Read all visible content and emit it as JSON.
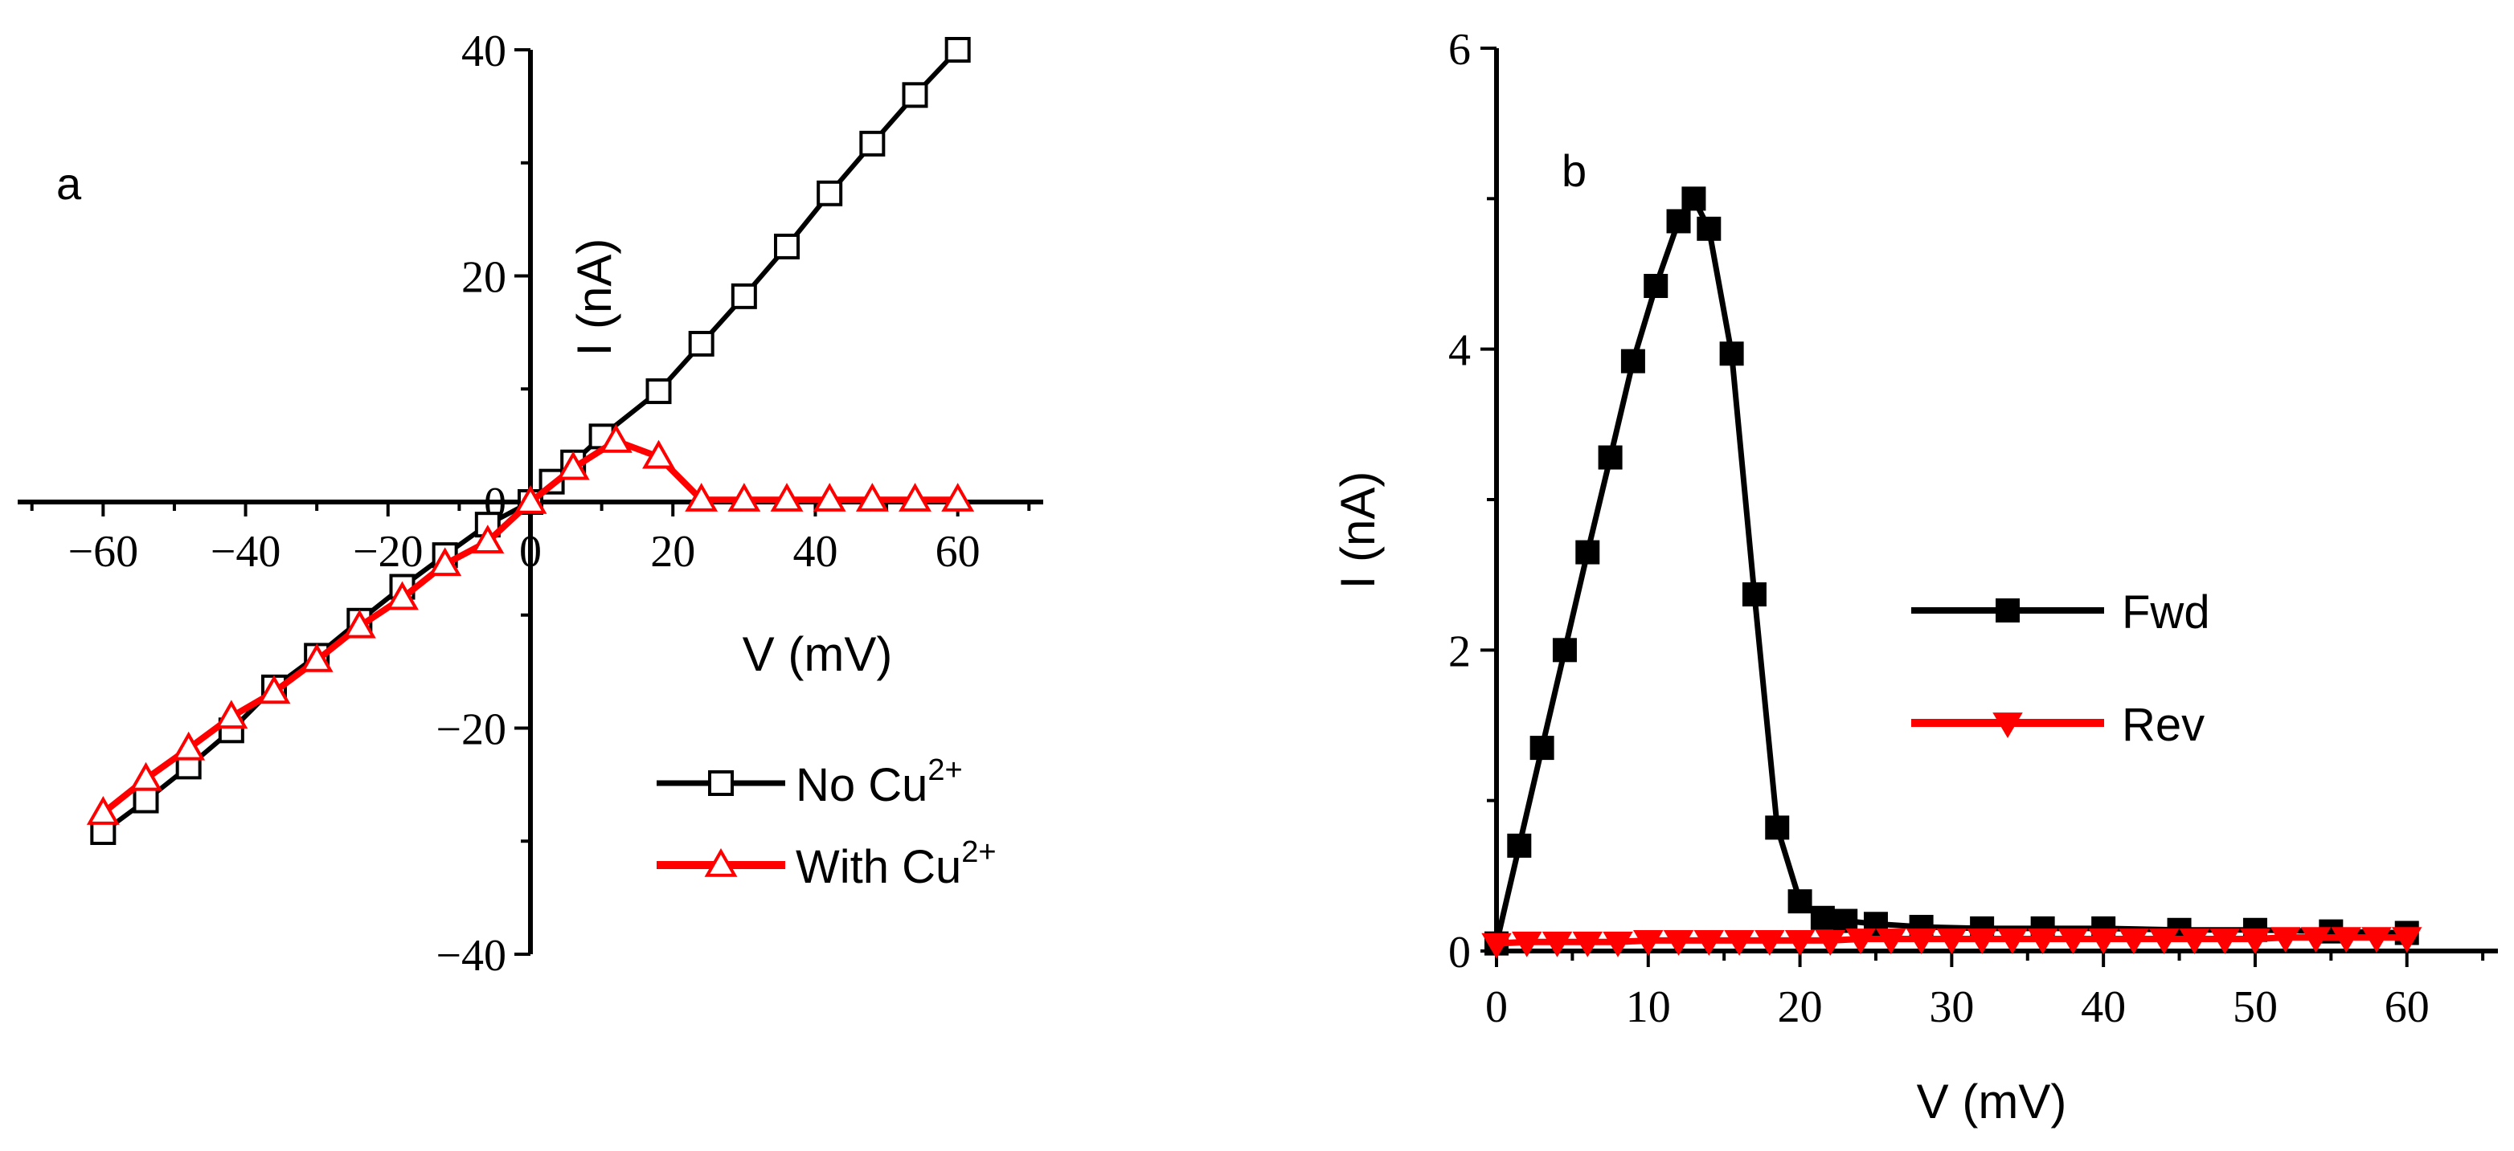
{
  "colors": {
    "black": "#000000",
    "red": "#ff0000",
    "white": "#ffffff"
  },
  "chart_data": [
    {
      "type": "line",
      "panel_label": "a",
      "xlabel": "V (mV)",
      "ylabel": "I (nA)",
      "xlim": [
        -72,
        72
      ],
      "ylim": [
        -40,
        40
      ],
      "x_ticks": [
        -60,
        -40,
        -20,
        0,
        20,
        40,
        60
      ],
      "y_ticks": [
        -40,
        -20,
        0,
        20,
        40
      ],
      "x_tick_labels": [
        "−60",
        "−40",
        "−20",
        "0",
        "20",
        "40",
        "60"
      ],
      "y_tick_labels": [
        "−40",
        "−20",
        "0",
        "20",
        "40"
      ],
      "axes_style": "crossing at origin",
      "legend_position": "bottom-right",
      "series": [
        {
          "name": "No Cu2+",
          "legend_base": "No Cu",
          "legend_sup": "2+",
          "color": "#000000",
          "marker": "open-square",
          "x": [
            -60,
            -54,
            -48,
            -42,
            -36,
            -30,
            -24,
            -18,
            -12,
            -6,
            0,
            3,
            6,
            10,
            18,
            24,
            30,
            36,
            42,
            48,
            54,
            60
          ],
          "y": [
            -29.2,
            -26.4,
            -23.4,
            -20.2,
            -16.4,
            -13.6,
            -10.5,
            -7.5,
            -4.7,
            -2.0,
            0.0,
            1.8,
            3.5,
            5.8,
            9.8,
            14.0,
            18.2,
            22.6,
            27.3,
            31.7,
            36.0,
            40.0
          ]
        },
        {
          "name": "With Cu2+",
          "legend_base": "With Cu",
          "legend_sup": "2+",
          "color": "#ff0000",
          "marker": "open-triangle",
          "x": [
            -60,
            -54,
            -48,
            -42,
            -36,
            -30,
            -24,
            -18,
            -12,
            -6,
            0,
            6,
            12,
            18,
            24,
            30,
            36,
            42,
            48,
            54,
            60
          ],
          "y": [
            -27.5,
            -24.5,
            -21.8,
            -19.0,
            -16.8,
            -14.0,
            -11.0,
            -8.5,
            -5.5,
            -3.5,
            0.0,
            3.0,
            5.4,
            4.0,
            0.2,
            0.2,
            0.2,
            0.2,
            0.2,
            0.2,
            0.2
          ]
        }
      ]
    },
    {
      "type": "line",
      "panel_label": "b",
      "xlabel": "V (mV)",
      "ylabel": "I (nA)",
      "xlim": [
        0,
        66
      ],
      "ylim": [
        0,
        6
      ],
      "x_ticks": [
        0,
        10,
        20,
        30,
        40,
        50,
        60
      ],
      "y_ticks": [
        0,
        2,
        4,
        6
      ],
      "x_tick_labels": [
        "0",
        "10",
        "20",
        "30",
        "40",
        "50",
        "60"
      ],
      "y_tick_labels": [
        "0",
        "2",
        "4",
        "6"
      ],
      "axes_style": "box left-bottom",
      "legend_position": "center-right",
      "series": [
        {
          "name": "Fwd",
          "color": "#000000",
          "marker": "filled-square",
          "x": [
            0,
            1.5,
            3,
            4.5,
            6,
            7.5,
            9,
            10.5,
            12,
            13,
            14,
            15.5,
            17,
            18.5,
            20,
            21.5,
            23,
            25,
            28,
            32,
            36,
            40,
            45,
            50,
            55,
            60
          ],
          "y": [
            0.05,
            0.7,
            1.35,
            2.0,
            2.65,
            3.28,
            3.92,
            4.42,
            4.85,
            5.0,
            4.8,
            3.97,
            2.37,
            0.82,
            0.33,
            0.22,
            0.2,
            0.18,
            0.16,
            0.15,
            0.15,
            0.15,
            0.14,
            0.14,
            0.13,
            0.12
          ]
        },
        {
          "name": "Rev",
          "color": "#ff0000",
          "marker": "filled-triangle-down",
          "x": [
            0,
            2,
            4,
            6,
            8,
            10,
            12,
            14,
            16,
            18,
            20,
            22,
            24,
            26,
            28,
            30,
            32,
            34,
            36,
            38,
            40,
            42,
            44,
            46,
            48,
            50,
            52,
            54,
            56,
            58,
            60
          ],
          "y": [
            0.05,
            0.06,
            0.06,
            0.06,
            0.06,
            0.07,
            0.07,
            0.07,
            0.07,
            0.07,
            0.07,
            0.07,
            0.08,
            0.08,
            0.08,
            0.08,
            0.08,
            0.08,
            0.08,
            0.08,
            0.08,
            0.08,
            0.08,
            0.08,
            0.08,
            0.08,
            0.09,
            0.09,
            0.09,
            0.09,
            0.09
          ]
        }
      ]
    }
  ]
}
